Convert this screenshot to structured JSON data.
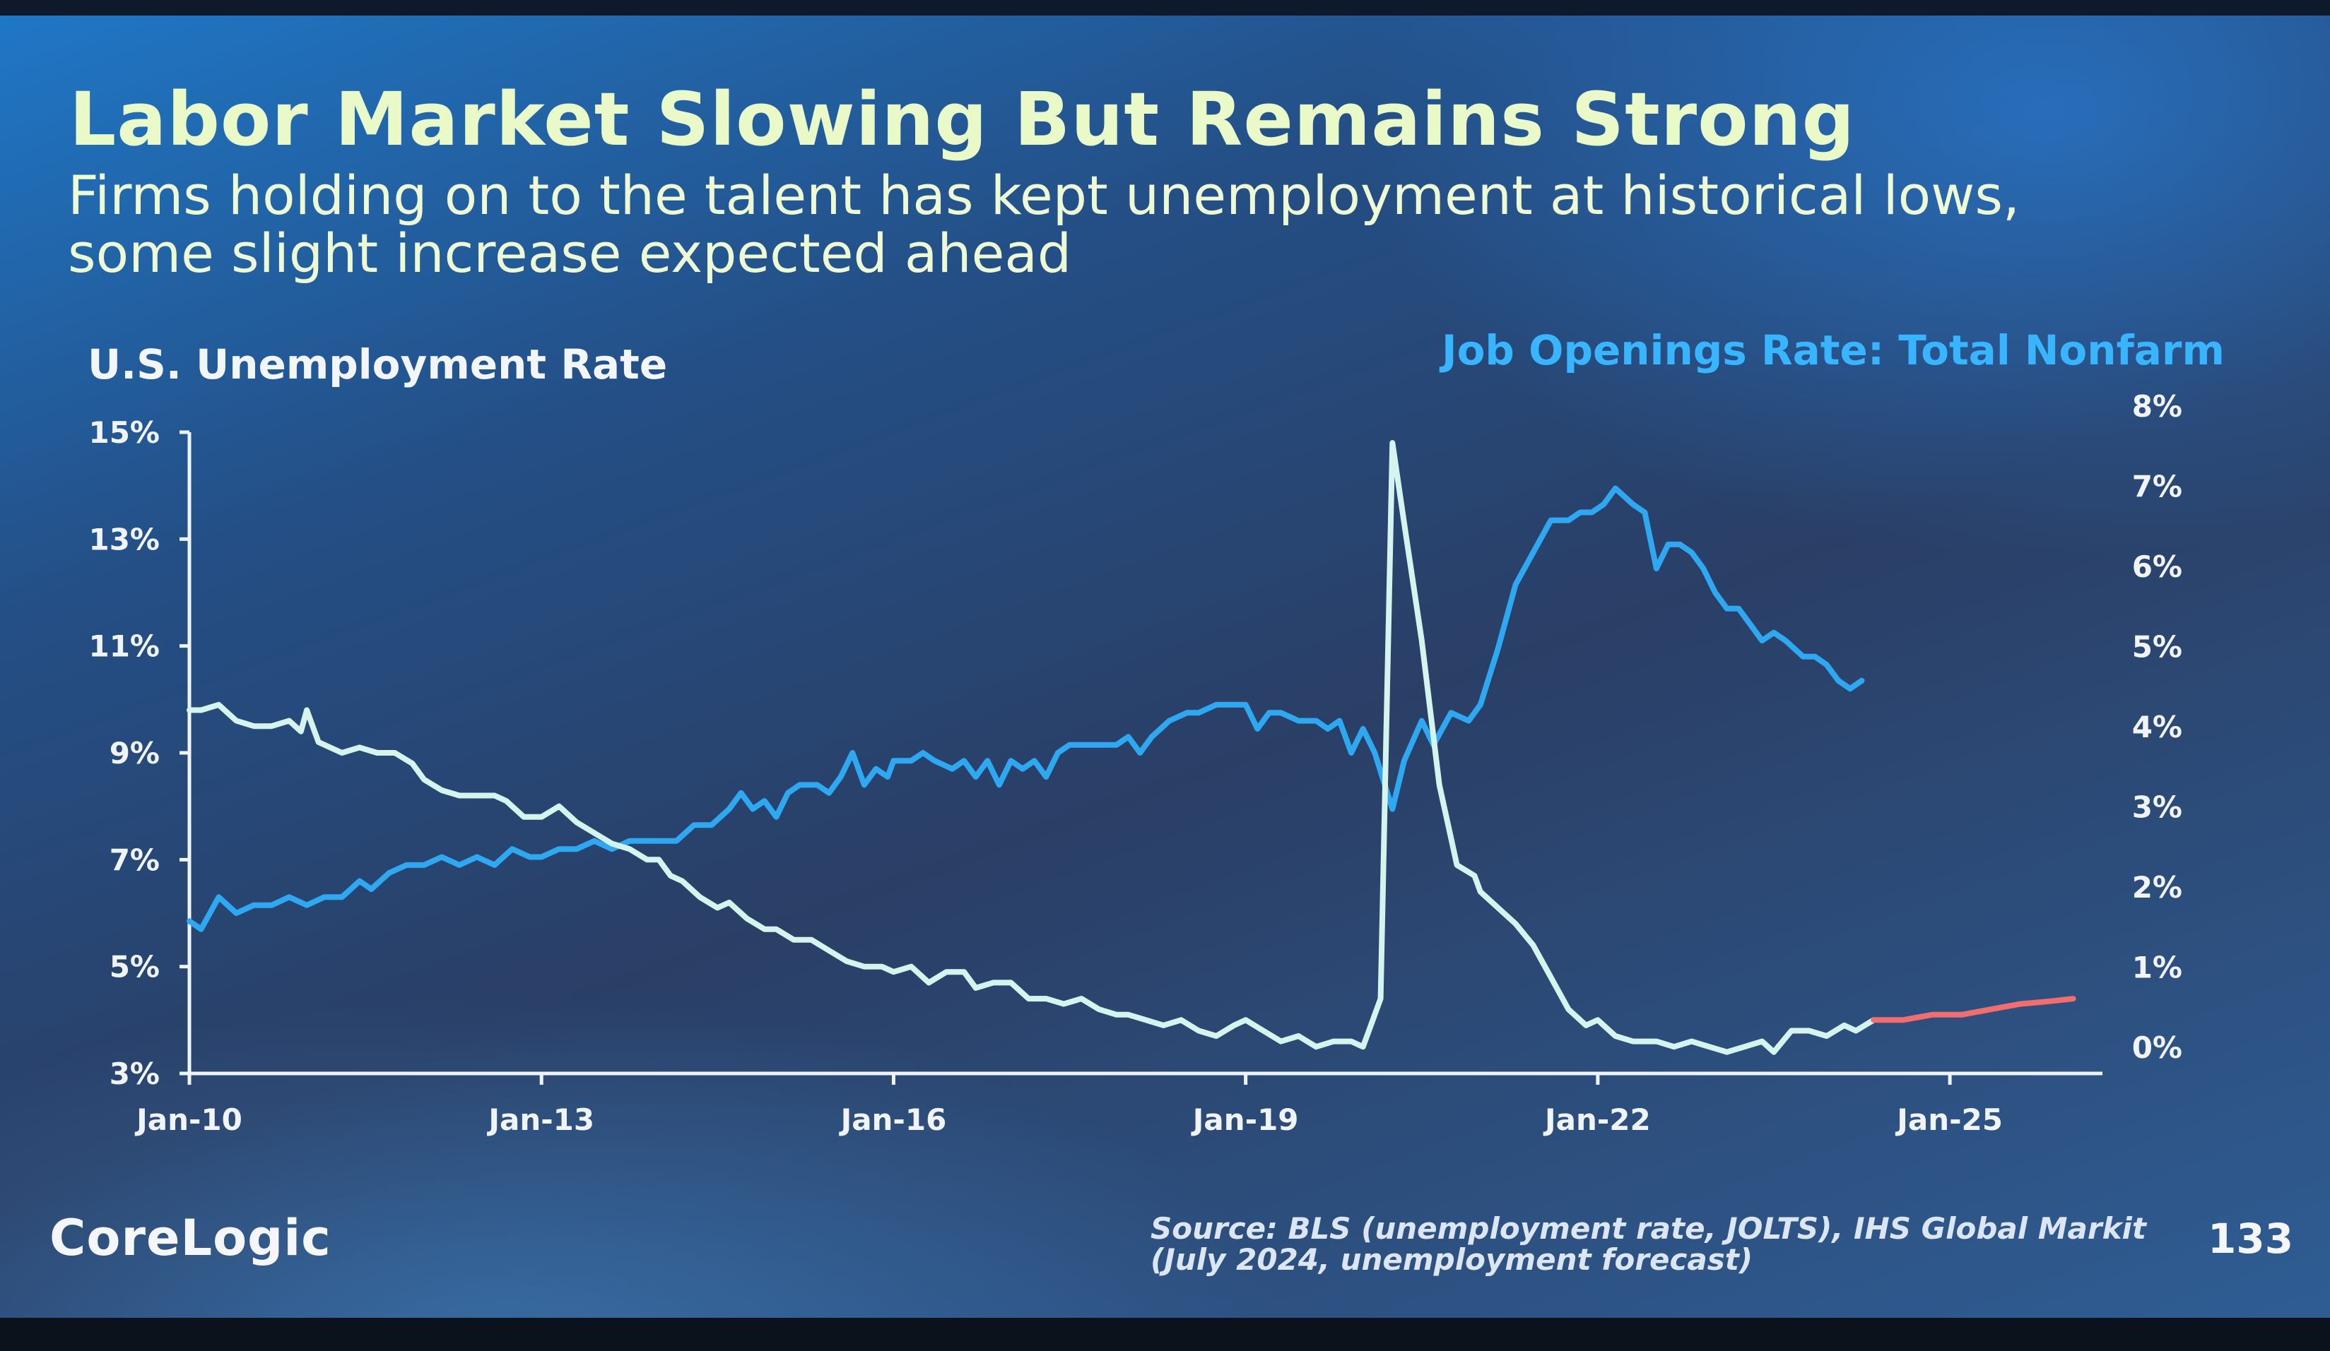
{
  "slide": {
    "title": "Labor Market Slowing But Remains Strong",
    "subtitle_line1": "Firms holding on to the talent has kept unemployment at historical lows,",
    "subtitle_line2": "some slight increase expected ahead",
    "left_axis_label": "U.S. Unemployment Rate",
    "right_axis_label": "Job Openings Rate: Total Nonfarm",
    "logo": "CoreLogic",
    "source": "Source: BLS (unemployment rate, JOLTS), IHS Global Markit (July 2024, unemployment forecast)",
    "page_number": "133"
  },
  "chart_data": {
    "type": "line",
    "title": "Labor Market Slowing But Remains Strong",
    "xlabel": "",
    "ylabel_left": "U.S. Unemployment Rate",
    "ylabel_right": "Job Openings Rate: Total Nonfarm",
    "xlim": [
      2010.0,
      2026.3
    ],
    "ylim_left": [
      3,
      15
    ],
    "ylim_right": [
      0,
      8
    ],
    "left_ticks": [
      "3%",
      "5%",
      "7%",
      "9%",
      "11%",
      "13%",
      "15%"
    ],
    "left_tick_values": [
      3,
      5,
      7,
      9,
      11,
      13,
      15
    ],
    "right_ticks": [
      "0%",
      "1%",
      "2%",
      "3%",
      "4%",
      "5%",
      "6%",
      "7%",
      "8%"
    ],
    "right_tick_values": [
      0,
      1,
      2,
      3,
      4,
      5,
      6,
      7,
      8
    ],
    "x_ticks": [
      "Jan-10",
      "Jan-13",
      "Jan-16",
      "Jan-19",
      "Jan-22",
      "Jan-25"
    ],
    "x_tick_values": [
      2010,
      2013,
      2016,
      2019,
      2022,
      2025
    ],
    "colors": {
      "unemployment": "#d6f4ee",
      "job_openings": "#2fa8f2",
      "forecast": "#f26d6d",
      "axis": "#eef3f8"
    },
    "series": [
      {
        "name": "U.S. Unemployment Rate",
        "axis": "left",
        "color": "#d6f4ee",
        "points": [
          [
            2010.0,
            9.8
          ],
          [
            2010.1,
            9.8
          ],
          [
            2010.25,
            9.9
          ],
          [
            2010.4,
            9.6
          ],
          [
            2010.55,
            9.5
          ],
          [
            2010.7,
            9.5
          ],
          [
            2010.85,
            9.6
          ],
          [
            2010.95,
            9.4
          ],
          [
            2011.0,
            9.8
          ],
          [
            2011.1,
            9.2
          ],
          [
            2011.3,
            9.0
          ],
          [
            2011.45,
            9.1
          ],
          [
            2011.6,
            9.0
          ],
          [
            2011.75,
            9.0
          ],
          [
            2011.9,
            8.8
          ],
          [
            2012.0,
            8.5
          ],
          [
            2012.15,
            8.3
          ],
          [
            2012.3,
            8.2
          ],
          [
            2012.45,
            8.2
          ],
          [
            2012.6,
            8.2
          ],
          [
            2012.7,
            8.1
          ],
          [
            2012.85,
            7.8
          ],
          [
            2013.0,
            7.8
          ],
          [
            2013.15,
            8.0
          ],
          [
            2013.3,
            7.7
          ],
          [
            2013.45,
            7.5
          ],
          [
            2013.6,
            7.3
          ],
          [
            2013.75,
            7.2
          ],
          [
            2013.9,
            7.0
          ],
          [
            2014.0,
            7.0
          ],
          [
            2014.1,
            6.7
          ],
          [
            2014.2,
            6.6
          ],
          [
            2014.35,
            6.3
          ],
          [
            2014.5,
            6.1
          ],
          [
            2014.6,
            6.2
          ],
          [
            2014.75,
            5.9
          ],
          [
            2014.9,
            5.7
          ],
          [
            2015.0,
            5.7
          ],
          [
            2015.15,
            5.5
          ],
          [
            2015.3,
            5.5
          ],
          [
            2015.45,
            5.3
          ],
          [
            2015.6,
            5.1
          ],
          [
            2015.75,
            5.0
          ],
          [
            2015.9,
            5.0
          ],
          [
            2016.0,
            4.9
          ],
          [
            2016.15,
            5.0
          ],
          [
            2016.3,
            4.7
          ],
          [
            2016.45,
            4.9
          ],
          [
            2016.6,
            4.9
          ],
          [
            2016.7,
            4.6
          ],
          [
            2016.85,
            4.7
          ],
          [
            2017.0,
            4.7
          ],
          [
            2017.15,
            4.4
          ],
          [
            2017.3,
            4.4
          ],
          [
            2017.45,
            4.3
          ],
          [
            2017.6,
            4.4
          ],
          [
            2017.75,
            4.2
          ],
          [
            2017.9,
            4.1
          ],
          [
            2018.0,
            4.1
          ],
          [
            2018.15,
            4.0
          ],
          [
            2018.3,
            3.9
          ],
          [
            2018.45,
            4.0
          ],
          [
            2018.6,
            3.8
          ],
          [
            2018.75,
            3.7
          ],
          [
            2018.9,
            3.9
          ],
          [
            2019.0,
            4.0
          ],
          [
            2019.15,
            3.8
          ],
          [
            2019.3,
            3.6
          ],
          [
            2019.45,
            3.7
          ],
          [
            2019.6,
            3.5
          ],
          [
            2019.75,
            3.6
          ],
          [
            2019.9,
            3.6
          ],
          [
            2020.0,
            3.5
          ],
          [
            2020.15,
            4.4
          ],
          [
            2020.25,
            14.8
          ],
          [
            2020.35,
            13.3
          ],
          [
            2020.5,
            11.1
          ],
          [
            2020.65,
            8.4
          ],
          [
            2020.8,
            6.9
          ],
          [
            2020.95,
            6.7
          ],
          [
            2021.0,
            6.4
          ],
          [
            2021.15,
            6.1
          ],
          [
            2021.3,
            5.8
          ],
          [
            2021.45,
            5.4
          ],
          [
            2021.6,
            4.8
          ],
          [
            2021.75,
            4.2
          ],
          [
            2021.9,
            3.9
          ],
          [
            2022.0,
            4.0
          ],
          [
            2022.15,
            3.7
          ],
          [
            2022.3,
            3.6
          ],
          [
            2022.5,
            3.6
          ],
          [
            2022.65,
            3.5
          ],
          [
            2022.8,
            3.6
          ],
          [
            2022.95,
            3.5
          ],
          [
            2023.1,
            3.4
          ],
          [
            2023.25,
            3.5
          ],
          [
            2023.4,
            3.6
          ],
          [
            2023.5,
            3.4
          ],
          [
            2023.65,
            3.8
          ],
          [
            2023.8,
            3.8
          ],
          [
            2023.95,
            3.7
          ],
          [
            2024.1,
            3.9
          ],
          [
            2024.2,
            3.8
          ],
          [
            2024.35,
            4.0
          ]
        ]
      },
      {
        "name": "Unemployment Forecast",
        "axis": "left",
        "color": "#f26d6d",
        "points": [
          [
            2024.35,
            4.0
          ],
          [
            2024.6,
            4.0
          ],
          [
            2024.85,
            4.1
          ],
          [
            2025.1,
            4.1
          ],
          [
            2025.35,
            4.2
          ],
          [
            2025.6,
            4.3
          ],
          [
            2025.85,
            4.35
          ],
          [
            2026.05,
            4.4
          ]
        ]
      },
      {
        "name": "Job Openings Rate: Total Nonfarm",
        "axis": "right",
        "color": "#2fa8f2",
        "points": [
          [
            2010.0,
            1.9
          ],
          [
            2010.1,
            1.8
          ],
          [
            2010.25,
            2.2
          ],
          [
            2010.4,
            2.0
          ],
          [
            2010.55,
            2.1
          ],
          [
            2010.7,
            2.1
          ],
          [
            2010.85,
            2.2
          ],
          [
            2011.0,
            2.1
          ],
          [
            2011.15,
            2.2
          ],
          [
            2011.3,
            2.2
          ],
          [
            2011.45,
            2.4
          ],
          [
            2011.55,
            2.3
          ],
          [
            2011.7,
            2.5
          ],
          [
            2011.85,
            2.6
          ],
          [
            2012.0,
            2.6
          ],
          [
            2012.15,
            2.7
          ],
          [
            2012.3,
            2.6
          ],
          [
            2012.45,
            2.7
          ],
          [
            2012.6,
            2.6
          ],
          [
            2012.75,
            2.8
          ],
          [
            2012.9,
            2.7
          ],
          [
            2013.0,
            2.7
          ],
          [
            2013.15,
            2.8
          ],
          [
            2013.3,
            2.8
          ],
          [
            2013.45,
            2.9
          ],
          [
            2013.6,
            2.8
          ],
          [
            2013.75,
            2.9
          ],
          [
            2013.9,
            2.9
          ],
          [
            2014.0,
            2.9
          ],
          [
            2014.15,
            2.9
          ],
          [
            2014.3,
            3.1
          ],
          [
            2014.45,
            3.1
          ],
          [
            2014.6,
            3.3
          ],
          [
            2014.7,
            3.5
          ],
          [
            2014.8,
            3.3
          ],
          [
            2014.9,
            3.4
          ],
          [
            2015.0,
            3.2
          ],
          [
            2015.1,
            3.5
          ],
          [
            2015.2,
            3.6
          ],
          [
            2015.35,
            3.6
          ],
          [
            2015.45,
            3.5
          ],
          [
            2015.55,
            3.7
          ],
          [
            2015.65,
            4.0
          ],
          [
            2015.75,
            3.6
          ],
          [
            2015.85,
            3.8
          ],
          [
            2015.95,
            3.7
          ],
          [
            2016.0,
            3.9
          ],
          [
            2016.15,
            3.9
          ],
          [
            2016.25,
            4.0
          ],
          [
            2016.35,
            3.9
          ],
          [
            2016.5,
            3.8
          ],
          [
            2016.6,
            3.9
          ],
          [
            2016.7,
            3.7
          ],
          [
            2016.8,
            3.9
          ],
          [
            2016.9,
            3.6
          ],
          [
            2017.0,
            3.9
          ],
          [
            2017.1,
            3.8
          ],
          [
            2017.2,
            3.9
          ],
          [
            2017.3,
            3.7
          ],
          [
            2017.4,
            4.0
          ],
          [
            2017.5,
            4.1
          ],
          [
            2017.6,
            4.1
          ],
          [
            2017.75,
            4.1
          ],
          [
            2017.9,
            4.1
          ],
          [
            2018.0,
            4.2
          ],
          [
            2018.1,
            4.0
          ],
          [
            2018.2,
            4.2
          ],
          [
            2018.35,
            4.4
          ],
          [
            2018.5,
            4.5
          ],
          [
            2018.6,
            4.5
          ],
          [
            2018.75,
            4.6
          ],
          [
            2018.9,
            4.6
          ],
          [
            2019.0,
            4.6
          ],
          [
            2019.1,
            4.3
          ],
          [
            2019.2,
            4.5
          ],
          [
            2019.3,
            4.5
          ],
          [
            2019.45,
            4.4
          ],
          [
            2019.6,
            4.4
          ],
          [
            2019.7,
            4.3
          ],
          [
            2019.8,
            4.4
          ],
          [
            2019.9,
            4.0
          ],
          [
            2020.0,
            4.3
          ],
          [
            2020.1,
            4.0
          ],
          [
            2020.25,
            3.3
          ],
          [
            2020.35,
            3.9
          ],
          [
            2020.5,
            4.4
          ],
          [
            2020.6,
            4.1
          ],
          [
            2020.75,
            4.5
          ],
          [
            2020.9,
            4.4
          ],
          [
            2021.0,
            4.6
          ],
          [
            2021.15,
            5.3
          ],
          [
            2021.3,
            6.1
          ],
          [
            2021.45,
            6.5
          ],
          [
            2021.6,
            6.9
          ],
          [
            2021.75,
            6.9
          ],
          [
            2021.85,
            7.0
          ],
          [
            2021.95,
            7.0
          ],
          [
            2022.05,
            7.1
          ],
          [
            2022.15,
            7.3
          ],
          [
            2022.3,
            7.1
          ],
          [
            2022.4,
            7.0
          ],
          [
            2022.5,
            6.3
          ],
          [
            2022.6,
            6.6
          ],
          [
            2022.7,
            6.6
          ],
          [
            2022.8,
            6.5
          ],
          [
            2022.9,
            6.3
          ],
          [
            2023.0,
            6.0
          ],
          [
            2023.1,
            5.8
          ],
          [
            2023.2,
            5.8
          ],
          [
            2023.3,
            5.6
          ],
          [
            2023.4,
            5.4
          ],
          [
            2023.5,
            5.5
          ],
          [
            2023.6,
            5.4
          ],
          [
            2023.75,
            5.2
          ],
          [
            2023.85,
            5.2
          ],
          [
            2023.95,
            5.1
          ],
          [
            2024.05,
            4.9
          ],
          [
            2024.15,
            4.8
          ],
          [
            2024.25,
            4.9
          ]
        ]
      }
    ]
  }
}
